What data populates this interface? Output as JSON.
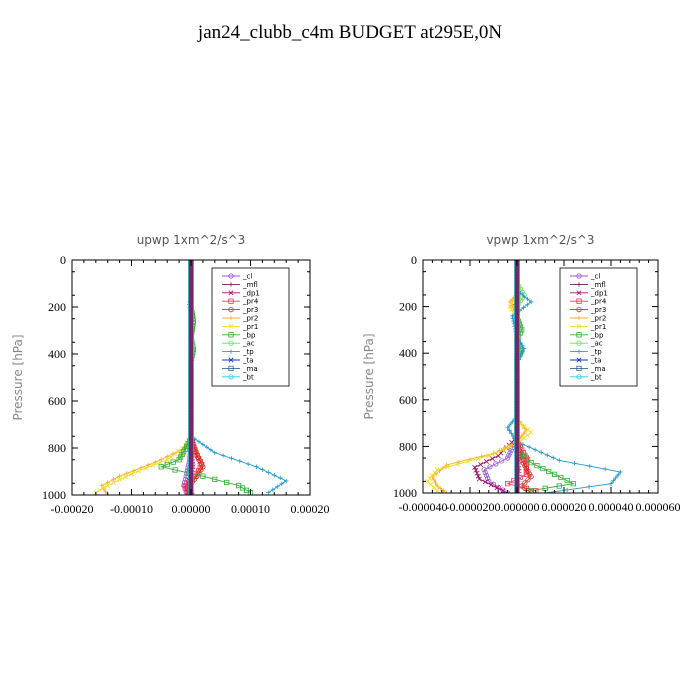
{
  "page_title": "jan24_clubb_c4m  BUDGET at295E,0N",
  "chart_data": [
    {
      "type": "line",
      "title": "upwp   1xm^2/s^3",
      "ylabel": "Pressure [hPa]",
      "xlabel": "",
      "xlim": [
        -0.0002,
        0.0002
      ],
      "ylim": [
        0,
        1000
      ],
      "y_inverted": true,
      "xticks": [
        -0.0002,
        -0.0001,
        0.0,
        0.0001,
        0.0002
      ],
      "xtick_labels": [
        "-0.00020",
        "-0.00010",
        "0.00000",
        "0.00010",
        "0.00020"
      ],
      "yticks": [
        0,
        200,
        400,
        600,
        800,
        1000
      ],
      "ytick_labels": [
        "0",
        "200",
        "400",
        "600",
        "800",
        "1000"
      ],
      "legend_position": "top-right",
      "series": [
        {
          "name": "_cl",
          "color": "#9955dd",
          "points": [
            [
              0,
              0
            ],
            [
              0,
              300
            ],
            [
              0,
              600
            ],
            [
              0,
              760
            ],
            [
              -2e-06,
              850
            ],
            [
              -8e-06,
              920
            ],
            [
              -1.2e-05,
              960
            ],
            [
              -6e-06,
              1000
            ]
          ]
        },
        {
          "name": "_mfl",
          "color": "#7a1a5a",
          "points": [
            [
              0,
              0
            ],
            [
              0,
              300
            ],
            [
              0,
              600
            ],
            [
              0,
              800
            ],
            [
              1e-06,
              900
            ],
            [
              -2e-06,
              960
            ],
            [
              0,
              1000
            ]
          ]
        },
        {
          "name": "_dp1",
          "color": "#a01060",
          "points": [
            [
              0,
              0
            ],
            [
              0,
              300
            ],
            [
              0,
              600
            ],
            [
              0,
              800
            ],
            [
              3e-06,
              880
            ],
            [
              -4e-06,
              950
            ],
            [
              2e-06,
              1000
            ]
          ]
        },
        {
          "name": "_pr4",
          "color": "#ff3355",
          "points": [
            [
              0,
              0
            ],
            [
              0,
              300
            ],
            [
              0,
              600
            ],
            [
              0,
              760
            ],
            [
              8e-06,
              820
            ],
            [
              1.8e-05,
              870
            ],
            [
              8e-06,
              920
            ],
            [
              -1e-05,
              960
            ],
            [
              -4e-06,
              1000
            ]
          ]
        },
        {
          "name": "_pr3",
          "color": "#cc3322",
          "points": [
            [
              0,
              0
            ],
            [
              0,
              300
            ],
            [
              0,
              600
            ],
            [
              0,
              760
            ],
            [
              1.2e-05,
              840
            ],
            [
              2e-05,
              880
            ],
            [
              1e-05,
              920
            ],
            [
              -6e-06,
              970
            ],
            [
              0,
              1000
            ]
          ]
        },
        {
          "name": "_pr2",
          "color": "#ffaa22",
          "points": [
            [
              0,
              0
            ],
            [
              0,
              600
            ],
            [
              0,
              760
            ],
            [
              -1e-05,
              800
            ],
            [
              -6e-05,
              860
            ],
            [
              -0.00012,
              920
            ],
            [
              -0.00015,
              960
            ],
            [
              -0.00014,
              1000
            ]
          ]
        },
        {
          "name": "_pr1",
          "color": "#eedd22",
          "points": [
            [
              0,
              0
            ],
            [
              0,
              600
            ],
            [
              0,
              740
            ],
            [
              -8e-06,
              790
            ],
            [
              -4e-05,
              850
            ],
            [
              -0.0001,
              910
            ],
            [
              -0.00014,
              960
            ],
            [
              -0.00016,
              990
            ]
          ]
        },
        {
          "name": "_bp",
          "color": "#33aa33",
          "points": [
            [
              0,
              0
            ],
            [
              0,
              200
            ],
            [
              4e-06,
              260
            ],
            [
              0,
              330
            ],
            [
              4e-06,
              380
            ],
            [
              0,
              430
            ],
            [
              0,
              600
            ],
            [
              0,
              760
            ],
            [
              -2e-05,
              850
            ],
            [
              -5e-05,
              880
            ],
            [
              2e-05,
              920
            ],
            [
              8e-05,
              960
            ],
            [
              0.0001,
              990
            ]
          ]
        },
        {
          "name": "_ac",
          "color": "#66dd66",
          "points": [
            [
              0,
              0
            ],
            [
              0,
              320
            ],
            [
              3e-06,
              370
            ],
            [
              0,
              420
            ],
            [
              0,
              1000
            ]
          ]
        },
        {
          "name": "_tp",
          "color": "#2299cc",
          "points": [
            [
              0,
              0
            ],
            [
              0,
              150
            ],
            [
              -3e-06,
              190
            ],
            [
              0,
              230
            ],
            [
              0,
              600
            ],
            [
              0,
              750
            ],
            [
              4e-05,
              820
            ],
            [
              0.00011,
              880
            ],
            [
              0.00016,
              940
            ],
            [
              0.00013,
              990
            ]
          ]
        },
        {
          "name": "_ta",
          "color": "#1133bb",
          "points": [
            [
              0,
              0
            ],
            [
              0,
              1000
            ]
          ]
        },
        {
          "name": "_ma",
          "color": "#336699",
          "points": [
            [
              0,
              0
            ],
            [
              0,
              1000
            ]
          ]
        },
        {
          "name": "_bt",
          "color": "#22ccee",
          "points": [
            [
              0,
              0
            ],
            [
              0,
              1000
            ]
          ]
        }
      ]
    },
    {
      "type": "line",
      "title": "vpwp   1xm^2/s^3",
      "ylabel": "Pressure [hPa]",
      "xlabel": "",
      "xlim": [
        -4e-05,
        6e-05
      ],
      "ylim": [
        0,
        1000
      ],
      "y_inverted": true,
      "xticks": [
        -4e-05,
        -2e-05,
        0.0,
        2e-05,
        4e-05,
        6e-05
      ],
      "xtick_labels": [
        "-0.000040",
        "-0.000020",
        "0.000000",
        "0.000020",
        "0.000040",
        "0.000060"
      ],
      "yticks": [
        0,
        200,
        400,
        600,
        800,
        1000
      ],
      "ytick_labels": [
        "0",
        "200",
        "400",
        "600",
        "800",
        "1000"
      ],
      "legend_position": "top-right",
      "series": [
        {
          "name": "_cl",
          "color": "#9955dd",
          "points": [
            [
              0,
              0
            ],
            [
              0,
              600
            ],
            [
              0,
              760
            ],
            [
              -4e-06,
              850
            ],
            [
              -1.4e-05,
              900
            ],
            [
              -1.2e-05,
              950
            ],
            [
              -4e-06,
              1000
            ]
          ]
        },
        {
          "name": "_mfl",
          "color": "#7a1a5a",
          "points": [
            [
              0,
              0
            ],
            [
              0,
              150
            ],
            [
              -1e-06,
              190
            ],
            [
              0,
              240
            ],
            [
              0,
              800
            ],
            [
              1e-06,
              900
            ],
            [
              0,
              1000
            ]
          ]
        },
        {
          "name": "_dp1",
          "color": "#a01060",
          "points": [
            [
              0,
              0
            ],
            [
              0,
              600
            ],
            [
              0,
              760
            ],
            [
              -8e-06,
              840
            ],
            [
              -1.8e-05,
              890
            ],
            [
              -1.6e-05,
              940
            ],
            [
              -6e-06,
              990
            ]
          ]
        },
        {
          "name": "_pr4",
          "color": "#ff3355",
          "points": [
            [
              0,
              0
            ],
            [
              0,
              600
            ],
            [
              0,
              780
            ],
            [
              4e-06,
              850
            ],
            [
              4e-06,
              920
            ],
            [
              -4e-06,
              960
            ],
            [
              8e-06,
              990
            ]
          ]
        },
        {
          "name": "_pr3",
          "color": "#cc3322",
          "points": [
            [
              0,
              0
            ],
            [
              0,
              600
            ],
            [
              0,
              780
            ],
            [
              2e-06,
              860
            ],
            [
              6e-06,
              930
            ],
            [
              2e-06,
              970
            ],
            [
              6e-06,
              1000
            ]
          ]
        },
        {
          "name": "_pr2",
          "color": "#ffaa22",
          "points": [
            [
              0,
              0
            ],
            [
              0,
              150
            ],
            [
              -3e-06,
              180
            ],
            [
              0,
              230
            ],
            [
              0,
              680
            ],
            [
              4e-06,
              730
            ],
            [
              0,
              780
            ],
            [
              -1e-05,
              830
            ],
            [
              -3e-05,
              880
            ],
            [
              -3.6e-05,
              930
            ],
            [
              -3.4e-05,
              970
            ],
            [
              -3e-05,
              1000
            ]
          ]
        },
        {
          "name": "_pr1",
          "color": "#eedd22",
          "points": [
            [
              0,
              0
            ],
            [
              0,
              150
            ],
            [
              -3e-06,
              200
            ],
            [
              0,
              250
            ],
            [
              0,
              690
            ],
            [
              6e-06,
              740
            ],
            [
              0,
              790
            ],
            [
              -1.2e-05,
              840
            ],
            [
              -3.4e-05,
              900
            ],
            [
              -3.8e-05,
              950
            ],
            [
              -3.4e-05,
              990
            ]
          ]
        },
        {
          "name": "_bp",
          "color": "#33aa33",
          "points": [
            [
              0,
              0
            ],
            [
              0,
              250
            ],
            [
              2e-06,
              300
            ],
            [
              0,
              340
            ],
            [
              2e-06,
              390
            ],
            [
              0,
              430
            ],
            [
              0,
              820
            ],
            [
              6e-06,
              870
            ],
            [
              1.6e-05,
              920
            ],
            [
              2.4e-05,
              960
            ],
            [
              6e-06,
              990
            ]
          ]
        },
        {
          "name": "_ac",
          "color": "#66dd66",
          "points": [
            [
              0,
              0
            ],
            [
              0,
              100
            ],
            [
              3e-06,
              150
            ],
            [
              0,
              200
            ],
            [
              0,
              1000
            ]
          ]
        },
        {
          "name": "_tp",
          "color": "#2299cc",
          "points": [
            [
              0,
              0
            ],
            [
              0,
              130
            ],
            [
              6e-06,
              180
            ],
            [
              -2e-06,
              240
            ],
            [
              0,
              330
            ],
            [
              3e-06,
              380
            ],
            [
              0,
              440
            ],
            [
              0,
              670
            ],
            [
              -4e-06,
              720
            ],
            [
              0,
              780
            ],
            [
              1.8e-05,
              860
            ],
            [
              4.4e-05,
              910
            ],
            [
              4e-05,
              960
            ],
            [
              1.2e-05,
              1000
            ]
          ]
        },
        {
          "name": "_ta",
          "color": "#1133bb",
          "points": [
            [
              0,
              0
            ],
            [
              0,
              1000
            ]
          ]
        },
        {
          "name": "_ma",
          "color": "#336699",
          "points": [
            [
              0,
              0
            ],
            [
              0,
              1000
            ]
          ]
        },
        {
          "name": "_bt",
          "color": "#22ccee",
          "points": [
            [
              0,
              0
            ],
            [
              0,
              1000
            ]
          ]
        }
      ]
    }
  ]
}
